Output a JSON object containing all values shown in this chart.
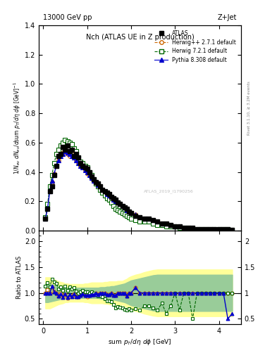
{
  "title_top": "13000 GeV pp",
  "title_right": "Z+Jet",
  "plot_title": "Nch (ATLAS UE in Z production)",
  "xlabel": "sum p_{T}/d\\eta d\\phi [GeV]",
  "ylabel_main": "1/N_{ev} dN_{ev}/dsum p_{T}/d\\eta d\\phi  [GeV]$^{-1}$",
  "ylabel_ratio": "Ratio to ATLAS",
  "right_label": "Rivet 3.1.10, ≥ 3.2M events",
  "watermark": "ATLAS_2019_I1790256",
  "atlas_x": [
    0.05,
    0.1,
    0.15,
    0.2,
    0.25,
    0.3,
    0.35,
    0.4,
    0.45,
    0.5,
    0.55,
    0.6,
    0.65,
    0.7,
    0.75,
    0.8,
    0.85,
    0.9,
    0.95,
    1.0,
    1.05,
    1.1,
    1.15,
    1.2,
    1.25,
    1.3,
    1.35,
    1.4,
    1.45,
    1.5,
    1.55,
    1.6,
    1.65,
    1.7,
    1.75,
    1.8,
    1.85,
    1.9,
    1.95,
    2.0,
    2.1,
    2.2,
    2.3,
    2.4,
    2.5,
    2.6,
    2.7,
    2.8,
    2.9,
    3.0,
    3.1,
    3.2,
    3.3,
    3.4,
    3.5,
    3.6,
    3.7,
    3.8,
    3.9,
    4.0,
    4.1,
    4.2,
    4.3
  ],
  "atlas_y": [
    0.08,
    0.15,
    0.27,
    0.3,
    0.38,
    0.44,
    0.51,
    0.52,
    0.57,
    0.55,
    0.58,
    0.54,
    0.55,
    0.51,
    0.52,
    0.5,
    0.46,
    0.44,
    0.43,
    0.42,
    0.4,
    0.37,
    0.35,
    0.33,
    0.32,
    0.3,
    0.28,
    0.27,
    0.26,
    0.25,
    0.23,
    0.22,
    0.21,
    0.19,
    0.18,
    0.17,
    0.16,
    0.15,
    0.13,
    0.12,
    0.1,
    0.09,
    0.08,
    0.08,
    0.07,
    0.06,
    0.05,
    0.05,
    0.04,
    0.03,
    0.03,
    0.02,
    0.02,
    0.02,
    0.01,
    0.01,
    0.01,
    0.01,
    0.01,
    0.01,
    0.01,
    0.01,
    0.005
  ],
  "herwig271_x": [
    0.05,
    0.1,
    0.15,
    0.2,
    0.25,
    0.3,
    0.35,
    0.4,
    0.45,
    0.5,
    0.55,
    0.6,
    0.65,
    0.7,
    0.75,
    0.8,
    0.85,
    0.9,
    0.95,
    1.0,
    1.05,
    1.1,
    1.15,
    1.2,
    1.25,
    1.3,
    1.35,
    1.4,
    1.45,
    1.5,
    1.55,
    1.6,
    1.65,
    1.7,
    1.75,
    1.8,
    1.85,
    1.9,
    1.95,
    2.0,
    2.1,
    2.2,
    2.3,
    2.4,
    2.5,
    2.6,
    2.7,
    2.8,
    2.9,
    3.0,
    3.1,
    3.2,
    3.3,
    3.4,
    3.5,
    3.6,
    3.7,
    3.8,
    3.9,
    4.0,
    4.1,
    4.2,
    4.3
  ],
  "herwig271_y": [
    0.08,
    0.16,
    0.27,
    0.33,
    0.39,
    0.44,
    0.48,
    0.52,
    0.53,
    0.53,
    0.52,
    0.51,
    0.52,
    0.5,
    0.48,
    0.46,
    0.44,
    0.43,
    0.41,
    0.39,
    0.38,
    0.36,
    0.34,
    0.33,
    0.31,
    0.3,
    0.28,
    0.27,
    0.25,
    0.24,
    0.23,
    0.21,
    0.2,
    0.19,
    0.18,
    0.17,
    0.16,
    0.14,
    0.13,
    0.12,
    0.11,
    0.09,
    0.08,
    0.08,
    0.07,
    0.06,
    0.05,
    0.05,
    0.04,
    0.03,
    0.03,
    0.02,
    0.02,
    0.02,
    0.01,
    0.01,
    0.01,
    0.01,
    0.01,
    0.01,
    0.01,
    0.01,
    0.005
  ],
  "herwig721_x": [
    0.05,
    0.1,
    0.15,
    0.2,
    0.25,
    0.3,
    0.35,
    0.4,
    0.45,
    0.5,
    0.55,
    0.6,
    0.65,
    0.7,
    0.75,
    0.8,
    0.85,
    0.9,
    0.95,
    1.0,
    1.05,
    1.1,
    1.15,
    1.2,
    1.25,
    1.3,
    1.35,
    1.4,
    1.45,
    1.5,
    1.55,
    1.6,
    1.65,
    1.7,
    1.75,
    1.8,
    1.85,
    1.9,
    1.95,
    2.0,
    2.1,
    2.2,
    2.3,
    2.4,
    2.5,
    2.6,
    2.7,
    2.8,
    2.9,
    3.0,
    3.1,
    3.2,
    3.3,
    3.4,
    3.5,
    3.6,
    3.7,
    3.8,
    3.9,
    4.0,
    4.1,
    4.2,
    4.3
  ],
  "herwig721_y": [
    0.09,
    0.18,
    0.3,
    0.38,
    0.46,
    0.52,
    0.55,
    0.58,
    0.6,
    0.62,
    0.61,
    0.6,
    0.59,
    0.56,
    0.54,
    0.5,
    0.47,
    0.46,
    0.44,
    0.43,
    0.4,
    0.38,
    0.35,
    0.32,
    0.3,
    0.28,
    0.26,
    0.24,
    0.22,
    0.21,
    0.19,
    0.17,
    0.15,
    0.14,
    0.13,
    0.12,
    0.11,
    0.1,
    0.09,
    0.08,
    0.07,
    0.06,
    0.06,
    0.06,
    0.05,
    0.04,
    0.04,
    0.03,
    0.03,
    0.03,
    0.02,
    0.02,
    0.02,
    0.01,
    0.01,
    0.01,
    0.01,
    0.01,
    0.01,
    0.01,
    0.01,
    0.01,
    0.005
  ],
  "pythia_x": [
    0.05,
    0.1,
    0.15,
    0.2,
    0.25,
    0.3,
    0.35,
    0.4,
    0.45,
    0.5,
    0.55,
    0.6,
    0.65,
    0.7,
    0.75,
    0.8,
    0.85,
    0.9,
    0.95,
    1.0,
    1.05,
    1.1,
    1.15,
    1.2,
    1.25,
    1.3,
    1.35,
    1.4,
    1.45,
    1.5,
    1.55,
    1.6,
    1.65,
    1.7,
    1.75,
    1.8,
    1.85,
    1.9,
    1.95,
    2.0,
    2.1,
    2.2,
    2.3,
    2.4,
    2.5,
    2.6,
    2.7,
    2.8,
    2.9,
    3.0,
    3.1,
    3.2,
    3.3,
    3.4,
    3.5,
    3.6,
    3.7,
    3.8,
    3.9,
    4.0,
    4.1,
    4.2,
    4.3
  ],
  "pythia_y": [
    0.08,
    0.15,
    0.27,
    0.34,
    0.39,
    0.44,
    0.48,
    0.51,
    0.52,
    0.54,
    0.53,
    0.52,
    0.51,
    0.5,
    0.48,
    0.46,
    0.44,
    0.43,
    0.41,
    0.4,
    0.38,
    0.36,
    0.34,
    0.33,
    0.31,
    0.3,
    0.28,
    0.27,
    0.25,
    0.24,
    0.23,
    0.21,
    0.2,
    0.19,
    0.18,
    0.17,
    0.16,
    0.14,
    0.13,
    0.12,
    0.11,
    0.09,
    0.08,
    0.08,
    0.07,
    0.06,
    0.05,
    0.05,
    0.04,
    0.03,
    0.03,
    0.02,
    0.02,
    0.02,
    0.01,
    0.01,
    0.01,
    0.01,
    0.01,
    0.01,
    0.01,
    0.005,
    0.003
  ],
  "atlas_color": "#000000",
  "herwig271_color": "#cc6600",
  "herwig721_color": "#006600",
  "pythia_color": "#0000cc",
  "ylim_main": [
    0.0,
    1.4
  ],
  "ylim_ratio": [
    0.4,
    2.2
  ],
  "xlim": [
    -0.1,
    4.5
  ],
  "band_yellow_lo": [
    0.7,
    0.7,
    0.7,
    0.72,
    0.74,
    0.76,
    0.78,
    0.79,
    0.8,
    0.82,
    0.82,
    0.83,
    0.83,
    0.83,
    0.83,
    0.83,
    0.83,
    0.83,
    0.82,
    0.82,
    0.81,
    0.8,
    0.8,
    0.8,
    0.8,
    0.8,
    0.8,
    0.79,
    0.79,
    0.78,
    0.78,
    0.78,
    0.78,
    0.77,
    0.77,
    0.77,
    0.75,
    0.73,
    0.7,
    0.68,
    0.65,
    0.63,
    0.6,
    0.58,
    0.56,
    0.55,
    0.55,
    0.55,
    0.55,
    0.55,
    0.55,
    0.55,
    0.55,
    0.55,
    0.55,
    0.55,
    0.55,
    0.55,
    0.55,
    0.55,
    0.55,
    0.55,
    0.55
  ],
  "band_yellow_hi": [
    1.3,
    1.3,
    1.3,
    1.28,
    1.26,
    1.24,
    1.22,
    1.21,
    1.2,
    1.18,
    1.18,
    1.17,
    1.17,
    1.17,
    1.17,
    1.17,
    1.17,
    1.17,
    1.18,
    1.18,
    1.19,
    1.2,
    1.2,
    1.2,
    1.2,
    1.2,
    1.2,
    1.21,
    1.21,
    1.22,
    1.22,
    1.22,
    1.22,
    1.23,
    1.23,
    1.23,
    1.25,
    1.27,
    1.3,
    1.32,
    1.35,
    1.37,
    1.4,
    1.42,
    1.44,
    1.45,
    1.45,
    1.45,
    1.45,
    1.45,
    1.45,
    1.45,
    1.45,
    1.45,
    1.45,
    1.45,
    1.45,
    1.45,
    1.45,
    1.45,
    1.45,
    1.45,
    1.45
  ],
  "band_green_lo": [
    0.82,
    0.82,
    0.83,
    0.84,
    0.85,
    0.86,
    0.87,
    0.88,
    0.89,
    0.89,
    0.9,
    0.9,
    0.9,
    0.9,
    0.9,
    0.9,
    0.9,
    0.9,
    0.9,
    0.9,
    0.9,
    0.9,
    0.9,
    0.9,
    0.9,
    0.89,
    0.89,
    0.89,
    0.88,
    0.88,
    0.87,
    0.87,
    0.86,
    0.85,
    0.84,
    0.83,
    0.82,
    0.8,
    0.78,
    0.76,
    0.74,
    0.72,
    0.7,
    0.68,
    0.66,
    0.65,
    0.65,
    0.65,
    0.65,
    0.65,
    0.65,
    0.65,
    0.65,
    0.65,
    0.65,
    0.65,
    0.65,
    0.65,
    0.65,
    0.65,
    0.65,
    0.65,
    0.65
  ],
  "band_green_hi": [
    1.18,
    1.18,
    1.17,
    1.16,
    1.15,
    1.14,
    1.13,
    1.12,
    1.11,
    1.11,
    1.1,
    1.1,
    1.1,
    1.1,
    1.1,
    1.1,
    1.1,
    1.1,
    1.1,
    1.1,
    1.1,
    1.1,
    1.1,
    1.1,
    1.1,
    1.11,
    1.11,
    1.11,
    1.12,
    1.12,
    1.13,
    1.13,
    1.14,
    1.15,
    1.16,
    1.17,
    1.18,
    1.2,
    1.22,
    1.24,
    1.26,
    1.28,
    1.3,
    1.32,
    1.34,
    1.35,
    1.35,
    1.35,
    1.35,
    1.35,
    1.35,
    1.35,
    1.35,
    1.35,
    1.35,
    1.35,
    1.35,
    1.35,
    1.35,
    1.35,
    1.35,
    1.35,
    1.35
  ]
}
